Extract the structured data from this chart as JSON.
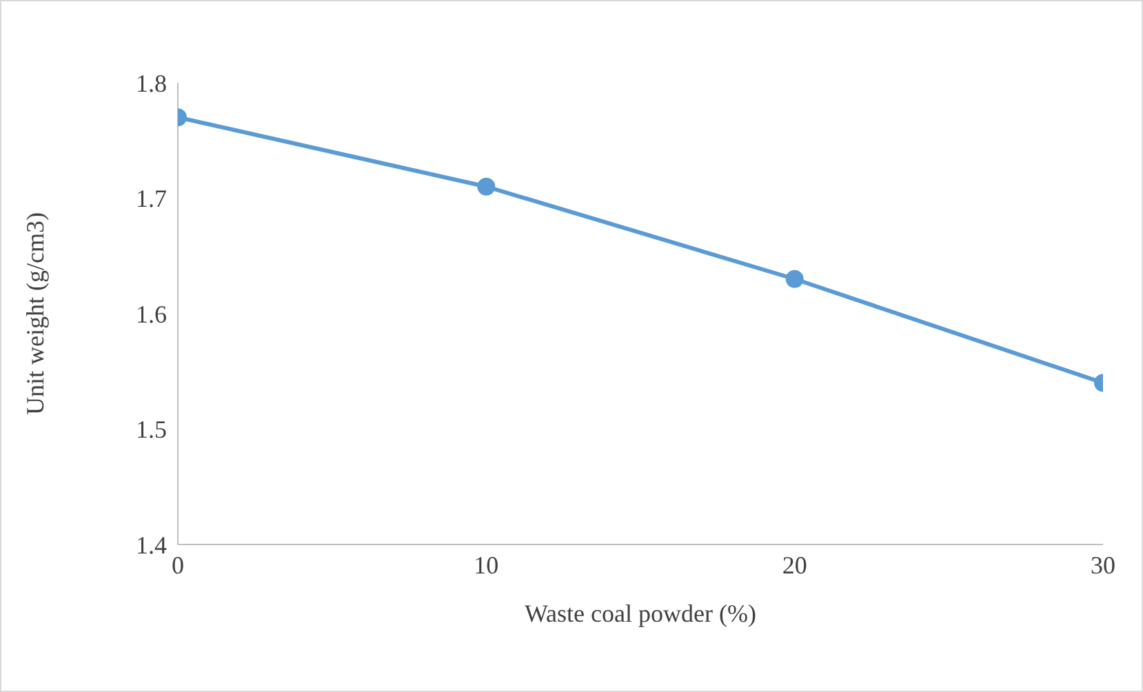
{
  "chart_data": {
    "type": "line",
    "xlabel": "Waste coal powder (%)",
    "ylabel": "Unit weight (g/cm3)",
    "x": [
      0,
      10,
      20,
      30
    ],
    "series": [
      {
        "color": "#5b9bd5",
        "values": [
          1.77,
          1.71,
          1.63,
          1.54
        ]
      }
    ],
    "xlim": [
      0,
      30
    ],
    "xticks": [
      0,
      10,
      20,
      30
    ],
    "ylim": [
      1.4,
      1.8
    ],
    "yticks": [
      1.4,
      1.5,
      1.6,
      1.7,
      1.8
    ],
    "grid": false,
    "legend": false,
    "marker": "circle",
    "line_style": "solid"
  }
}
